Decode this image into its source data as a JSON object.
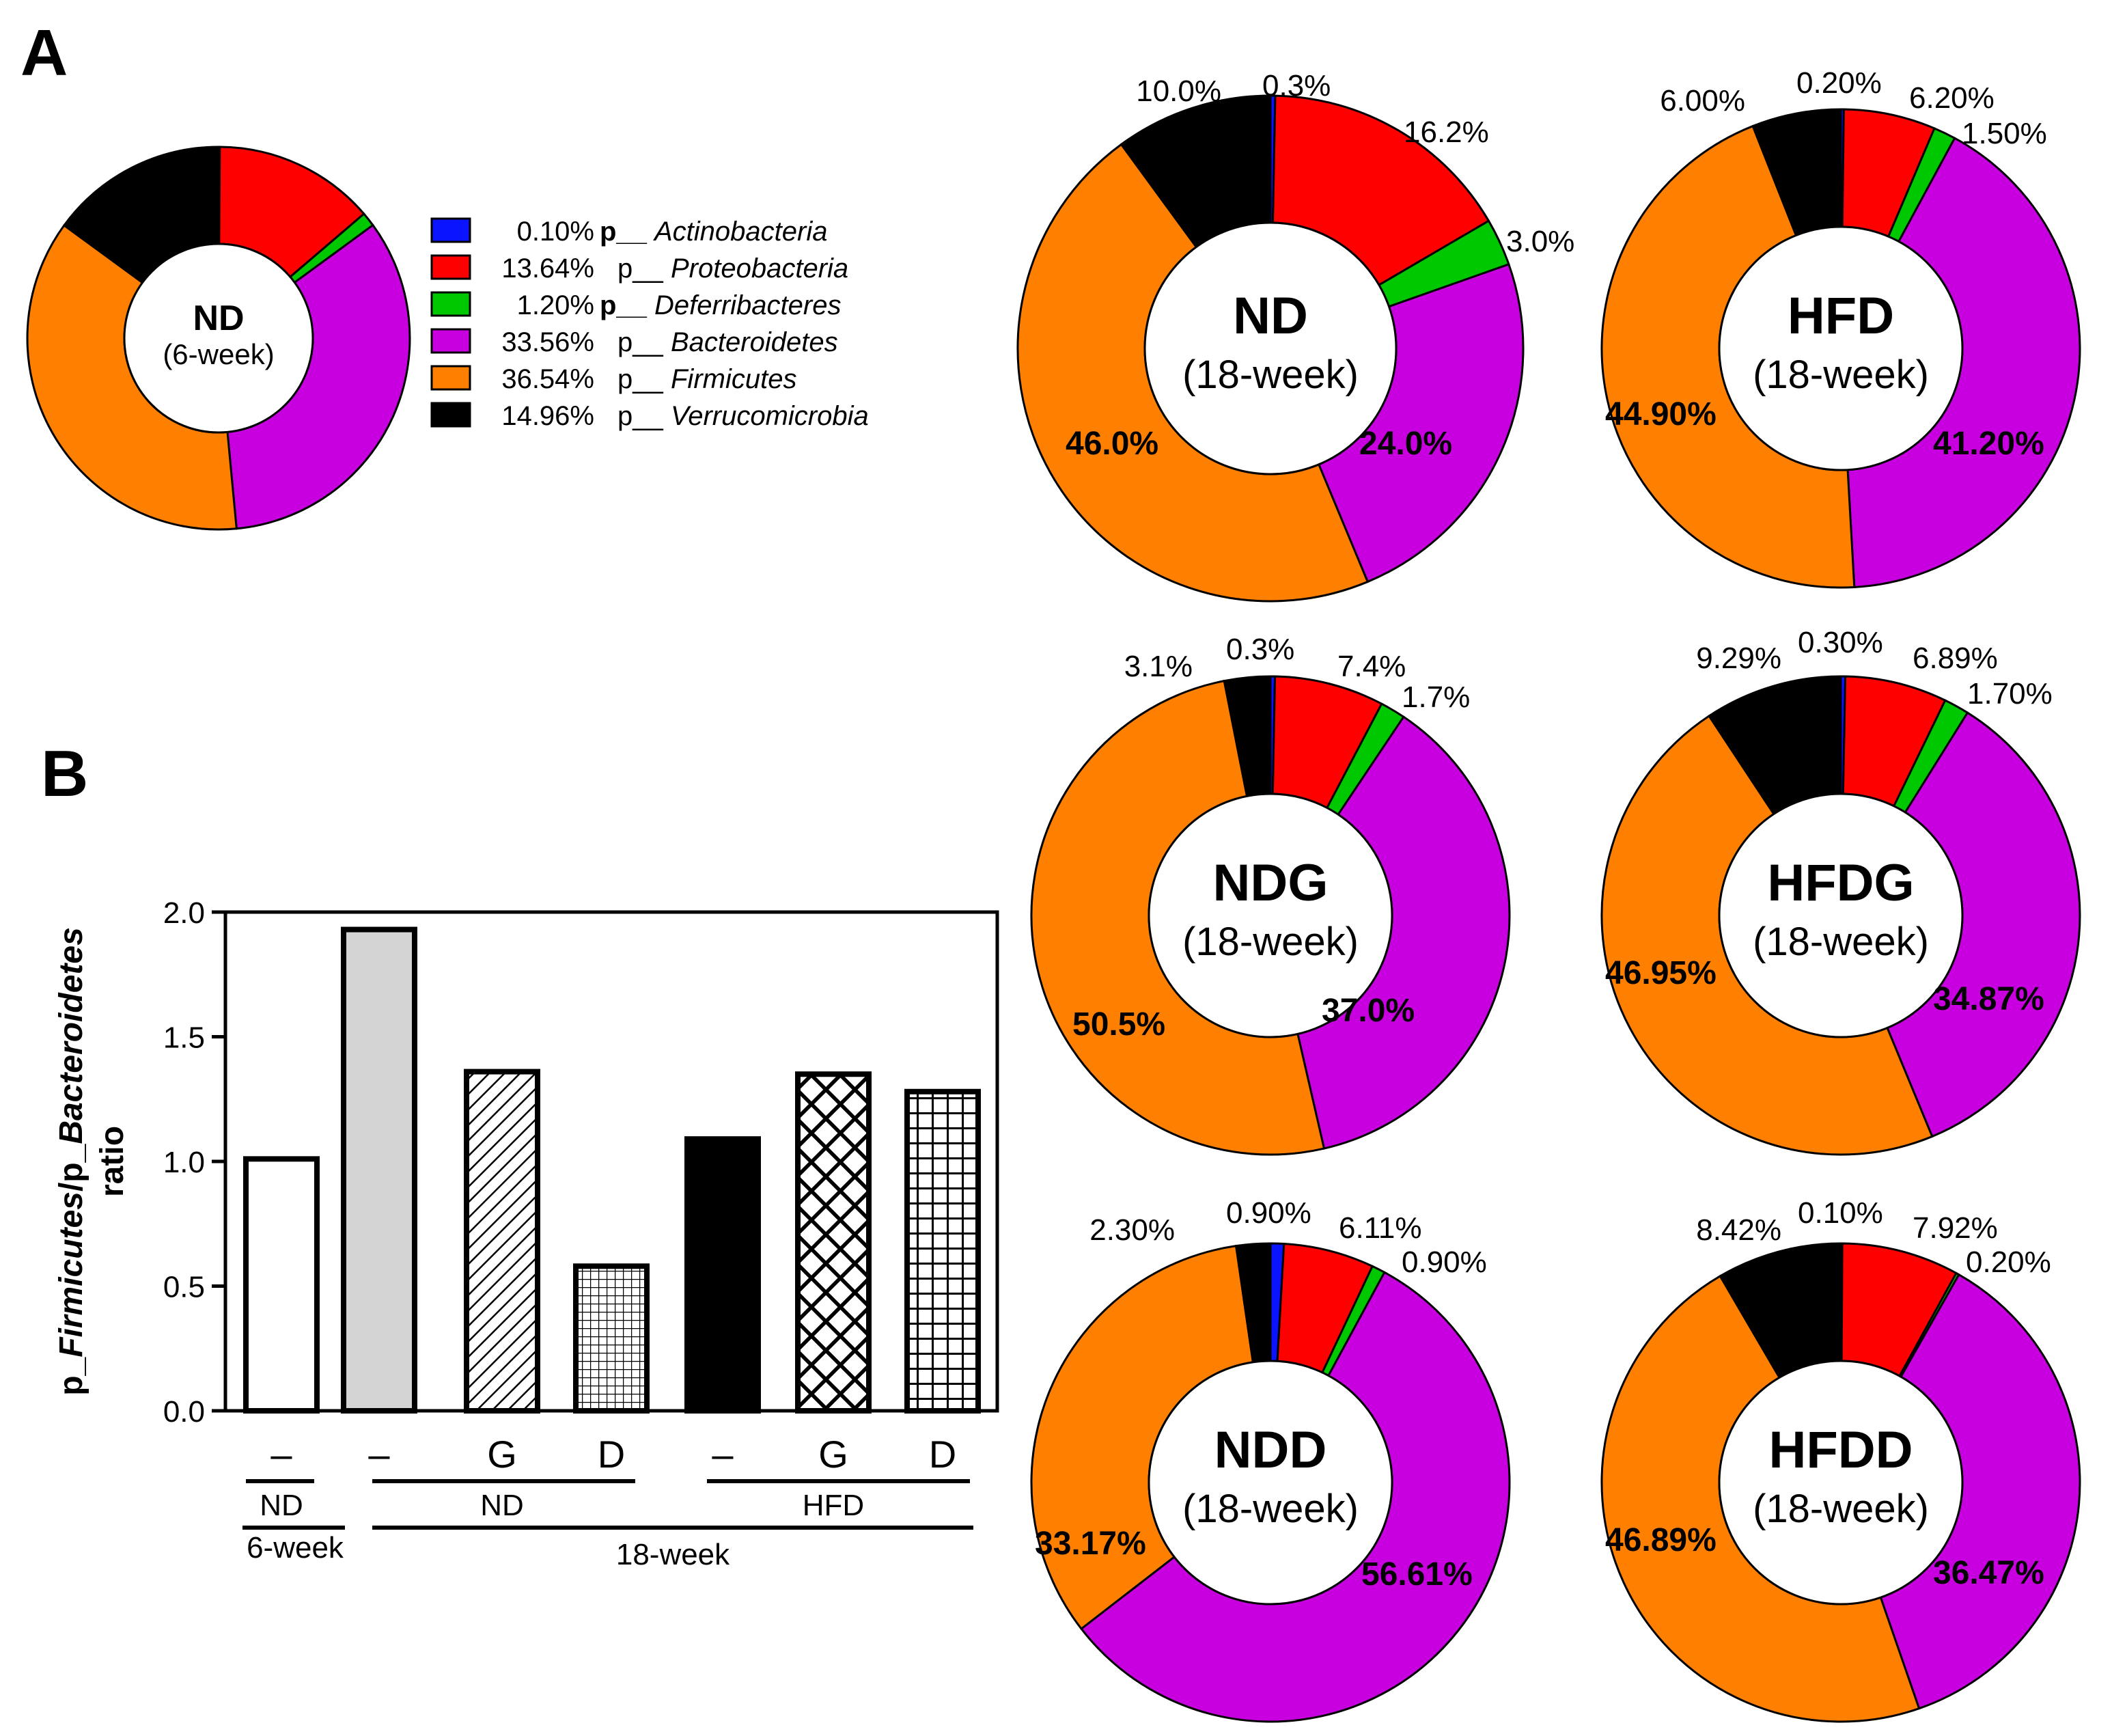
{
  "panel_labels": {
    "a": "A",
    "b": "B"
  },
  "colors": {
    "Actinobacteria": "#0a14ff",
    "Proteobacteria": "#ff0000",
    "Deferribacteres": "#00c800",
    "Bacteroidetes": "#c800e0",
    "Firmicutes": "#ff8000",
    "Verrucomicrobia": "#000000"
  },
  "legend": {
    "items": [
      {
        "value": "0.10%",
        "prefix": "p__",
        "name": "Actinobacteria",
        "color": "#0a14ff"
      },
      {
        "value": "13.64%",
        "prefix": "p__",
        "name": "Proteobacteria",
        "color": "#ff0000"
      },
      {
        "value": "1.20%",
        "prefix": "p__",
        "name": "Deferribacteres",
        "color": "#00c800"
      },
      {
        "value": "33.56%",
        "prefix": "p__",
        "name": "Bacteroidetes",
        "color": "#c800e0"
      },
      {
        "value": "36.54%",
        "prefix": "p__",
        "name": "Firmicutes",
        "color": "#ff8000"
      },
      {
        "value": "14.96%",
        "prefix": "p__",
        "name": "Verrucomicrobia",
        "color": "#000000"
      }
    ]
  },
  "chart_data": [
    {
      "type": "pie",
      "variant": "donut",
      "title": "ND",
      "subtitle": "(6-week)",
      "categories": [
        "Actinobacteria",
        "Proteobacteria",
        "Deferribacteres",
        "Bacteroidetes",
        "Firmicutes",
        "Verrucomicrobia"
      ],
      "values": [
        0.1,
        13.64,
        1.2,
        33.56,
        36.54,
        14.96
      ],
      "labels": []
    },
    {
      "type": "pie",
      "variant": "donut",
      "title": "ND",
      "subtitle": "(18-week)",
      "categories": [
        "Actinobacteria",
        "Proteobacteria",
        "Deferribacteres",
        "Bacteroidetes",
        "Firmicutes",
        "Verrucomicrobia"
      ],
      "values": [
        0.3,
        16.2,
        3.0,
        24.0,
        46.0,
        10.0
      ],
      "labels": [
        "0.3%",
        "16.2%",
        "3.0%",
        "24.0%",
        "46.0%",
        "10.0%"
      ]
    },
    {
      "type": "pie",
      "variant": "donut",
      "title": "HFD",
      "subtitle": "(18-week)",
      "categories": [
        "Actinobacteria",
        "Proteobacteria",
        "Deferribacteres",
        "Bacteroidetes",
        "Firmicutes",
        "Verrucomicrobia"
      ],
      "values": [
        0.2,
        6.2,
        1.5,
        41.2,
        44.9,
        6.0
      ],
      "labels": [
        "0.20%",
        "6.20%",
        "1.50%",
        "41.20%",
        "44.90%",
        "6.00%"
      ]
    },
    {
      "type": "pie",
      "variant": "donut",
      "title": "NDG",
      "subtitle": "(18-week)",
      "categories": [
        "Actinobacteria",
        "Proteobacteria",
        "Deferribacteres",
        "Bacteroidetes",
        "Firmicutes",
        "Verrucomicrobia"
      ],
      "values": [
        0.3,
        7.4,
        1.7,
        37.0,
        50.5,
        3.1
      ],
      "labels": [
        "0.3%",
        "7.4%",
        "1.7%",
        "37.0%",
        "50.5%",
        "3.1%"
      ]
    },
    {
      "type": "pie",
      "variant": "donut",
      "title": "HFDG",
      "subtitle": "(18-week)",
      "categories": [
        "Actinobacteria",
        "Proteobacteria",
        "Deferribacteres",
        "Bacteroidetes",
        "Firmicutes",
        "Verrucomicrobia"
      ],
      "values": [
        0.3,
        6.89,
        1.7,
        34.87,
        46.95,
        9.29
      ],
      "labels": [
        "0.30%",
        "6.89%",
        "1.70%",
        "34.87%",
        "46.95%",
        "9.29%"
      ]
    },
    {
      "type": "pie",
      "variant": "donut",
      "title": "NDD",
      "subtitle": "(18-week)",
      "categories": [
        "Actinobacteria",
        "Proteobacteria",
        "Deferribacteres",
        "Bacteroidetes",
        "Firmicutes",
        "Verrucomicrobia"
      ],
      "values": [
        0.9,
        6.11,
        0.9,
        56.61,
        33.17,
        2.3
      ],
      "labels": [
        "0.90%",
        "6.11%",
        "0.90%",
        "56.61%",
        "33.17%",
        "2.30%"
      ]
    },
    {
      "type": "pie",
      "variant": "donut",
      "title": "HFDD",
      "subtitle": "(18-week)",
      "categories": [
        "Actinobacteria",
        "Proteobacteria",
        "Deferribacteres",
        "Bacteroidetes",
        "Firmicutes",
        "Verrucomicrobia"
      ],
      "values": [
        0.1,
        7.92,
        0.2,
        36.47,
        46.89,
        8.42
      ],
      "labels": [
        "0.10%",
        "7.92%",
        "0.20%",
        "36.47%",
        "46.89%",
        "8.42%"
      ]
    },
    {
      "type": "bar",
      "ylabel_parts": [
        "p_",
        "Firmicutes",
        "/p_",
        "Bacteroidetes",
        "ratio"
      ],
      "ylim": [
        0.0,
        2.0
      ],
      "yticks": [
        "0.0",
        "0.5",
        "1.0",
        "1.5",
        "2.0"
      ],
      "yticks_values": [
        0.0,
        0.5,
        1.0,
        1.5,
        2.0
      ],
      "categories": [
        "–",
        "–",
        "G",
        "D",
        "–",
        "G",
        "D"
      ],
      "values": [
        1.01,
        1.93,
        1.36,
        0.58,
        1.09,
        1.35,
        1.28
      ],
      "fills": [
        "white",
        "gray",
        "diagonal",
        "finegrid",
        "black",
        "crosshatch",
        "grid"
      ],
      "groups": [
        {
          "label": "ND",
          "sublabel": "6-week"
        },
        {
          "label": "ND"
        },
        {
          "label": "HFD"
        },
        {
          "label": "18-week"
        }
      ]
    }
  ]
}
